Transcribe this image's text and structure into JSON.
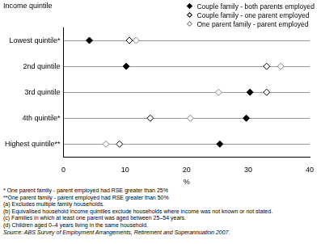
{
  "chart_data": {
    "type": "dot",
    "orientation": "horizontal",
    "y_label": "Income quintile",
    "x_label": "%",
    "categories": [
      "Lowest quintile*",
      "2nd quintile",
      "3rd quintile",
      "4th quintile*",
      "Highest quintile**"
    ],
    "series": [
      {
        "name": "Couple family - both parents employed",
        "color": "#000000",
        "marker": "diamond",
        "values": [
          4.2,
          10.2,
          30.3,
          29.7,
          25.4
        ]
      },
      {
        "name": "Couple family - one parent employed",
        "color": "#000000",
        "marker": "diamond-open",
        "values": [
          10.7,
          33.0,
          33.0,
          14.1,
          9.1
        ]
      },
      {
        "name": "One parent family - parent employed",
        "color": "#808080",
        "marker": "diamond-open",
        "values": [
          11.8,
          35.3,
          25.2,
          20.6,
          6.9
        ]
      }
    ],
    "xlim": [
      0,
      40
    ],
    "xticks": [
      0,
      10,
      20,
      30,
      40
    ],
    "grid": true,
    "legend": "top-right",
    "notes": [
      "* One parent family - parent employed had RSE greater than 25%",
      "**One parent family - parent employed had RSE greater than 50%",
      "(a) Excludes multiple family households.",
      "(b) Equivalised household income quintiles exclude households where income was not known or not stated.",
      "(c) Families in which at least one parent was aged between 25–54 years.",
      "(d) Children aged 0–4 years living in the same household."
    ],
    "source": "Source: ABS Survey of Employment Arrangements, Retirement and Superannuation 2007."
  }
}
